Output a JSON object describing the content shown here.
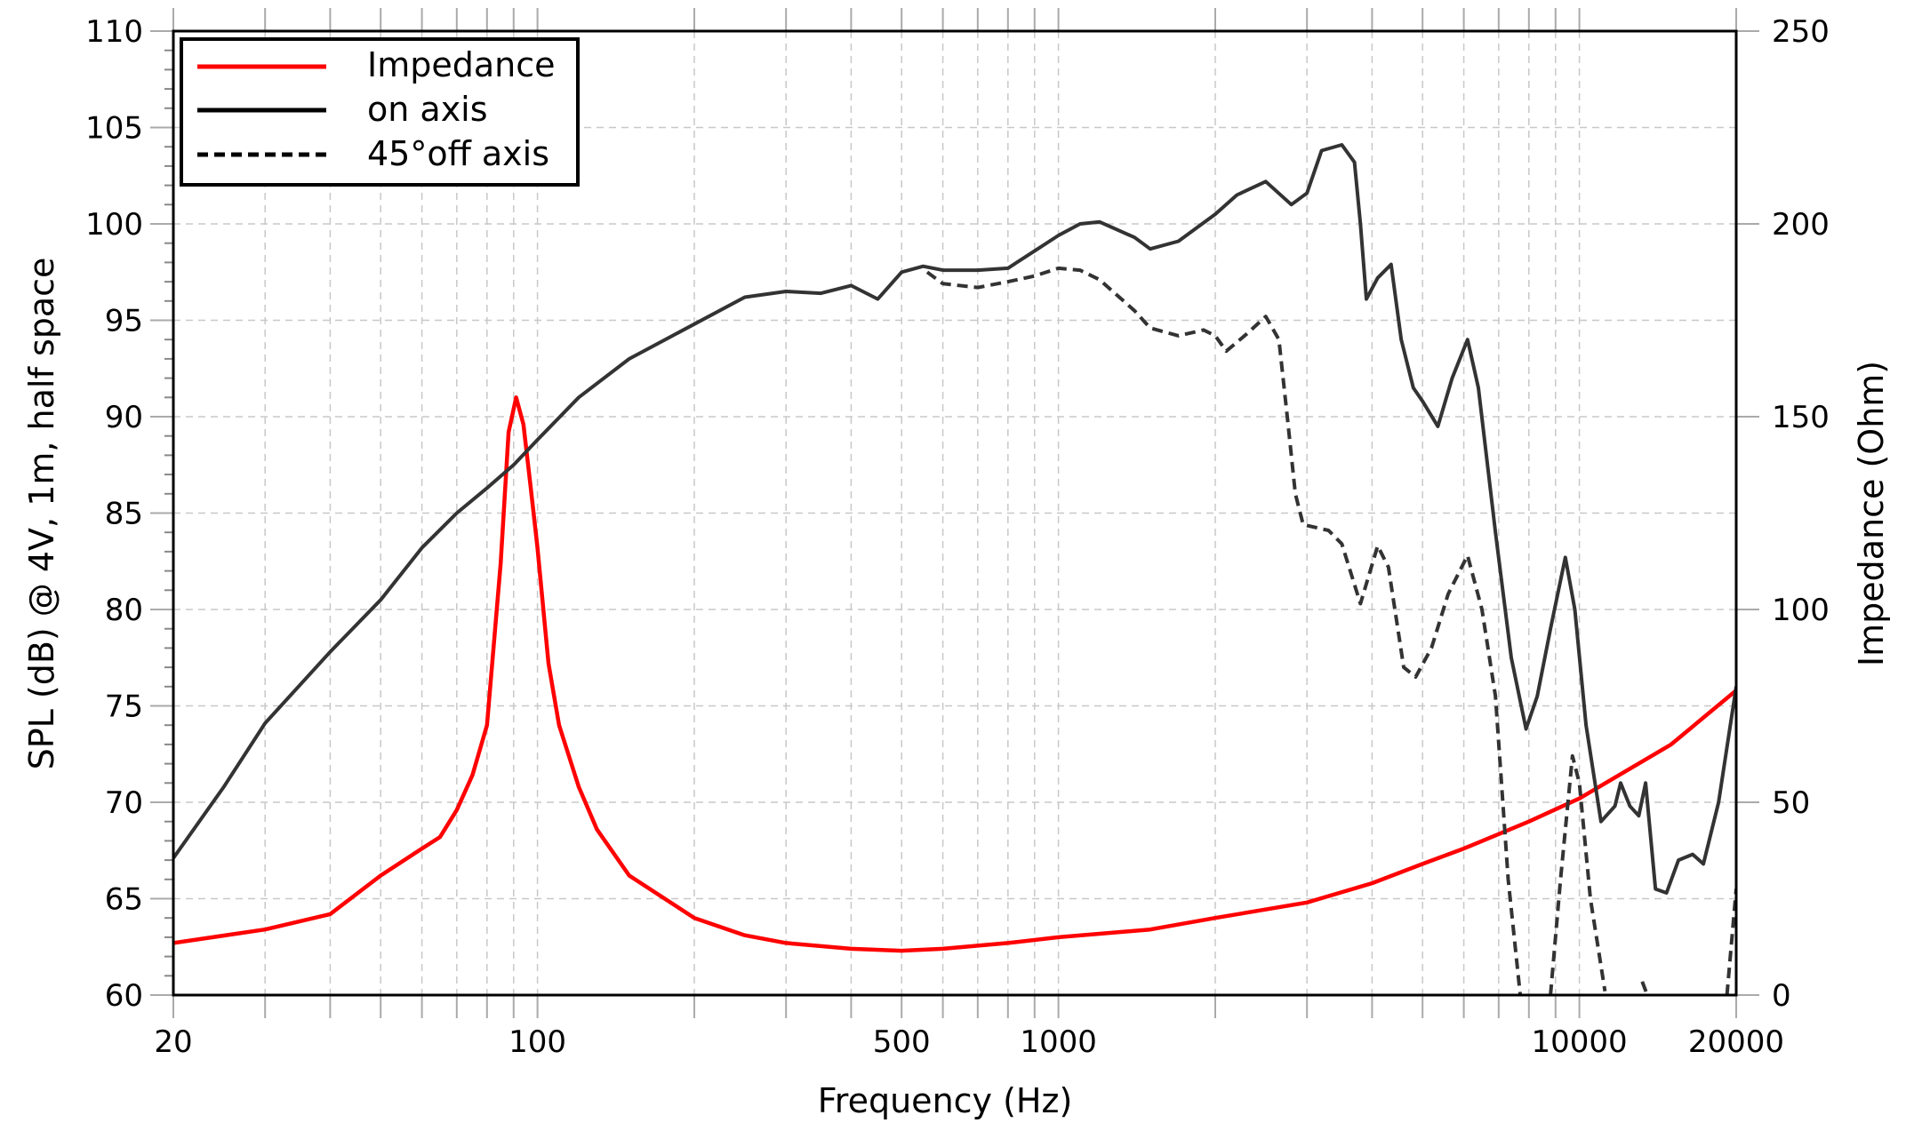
{
  "chart_data": {
    "type": "line",
    "xlabel": "Frequency (Hz)",
    "ylabel": "SPL (dB) @ 4V, 1m, half space",
    "y2label": "Impedance (Ohm)",
    "xscale": "log",
    "xlim": [
      20,
      20000
    ],
    "ylim": [
      60,
      110
    ],
    "y2lim": [
      0,
      250
    ],
    "grid": true,
    "legend_position": "top-left",
    "x_tick_labels": [
      "20",
      "100",
      "500",
      "1000",
      "10000",
      "20000"
    ],
    "x_tick_values": [
      20,
      100,
      500,
      1000,
      10000,
      20000
    ],
    "y_tick_labels": [
      "60",
      "65",
      "70",
      "75",
      "80",
      "85",
      "90",
      "95",
      "100",
      "105",
      "110"
    ],
    "y2_tick_labels": [
      "0",
      "50",
      "100",
      "150",
      "200",
      "250"
    ],
    "series": [
      {
        "name": "Impedance",
        "axis": "right",
        "color": "#ff0000",
        "style": "solid",
        "points": [
          [
            20,
            13.5
          ],
          [
            30,
            17
          ],
          [
            40,
            21
          ],
          [
            50,
            31
          ],
          [
            60,
            38
          ],
          [
            65,
            41
          ],
          [
            70,
            48
          ],
          [
            75,
            57
          ],
          [
            80,
            70
          ],
          [
            85,
            112
          ],
          [
            88,
            146
          ],
          [
            91,
            155
          ],
          [
            94,
            148
          ],
          [
            97,
            132
          ],
          [
            100,
            116
          ],
          [
            105,
            86
          ],
          [
            110,
            70
          ],
          [
            120,
            54
          ],
          [
            130,
            43
          ],
          [
            150,
            31
          ],
          [
            200,
            20
          ],
          [
            250,
            15.5
          ],
          [
            300,
            13.5
          ],
          [
            400,
            12
          ],
          [
            500,
            11.5
          ],
          [
            600,
            12
          ],
          [
            800,
            13.5
          ],
          [
            1000,
            15
          ],
          [
            1500,
            17
          ],
          [
            2000,
            20
          ],
          [
            3000,
            24
          ],
          [
            4000,
            29
          ],
          [
            5000,
            34
          ],
          [
            6000,
            38
          ],
          [
            8000,
            45
          ],
          [
            10000,
            51
          ],
          [
            15000,
            65
          ],
          [
            20000,
            79
          ]
        ]
      },
      {
        "name": "on axis",
        "axis": "left",
        "color": "#333333",
        "style": "solid",
        "points": [
          [
            20,
            67.1
          ],
          [
            25,
            70.8
          ],
          [
            30,
            74.1
          ],
          [
            40,
            77.8
          ],
          [
            50,
            80.5
          ],
          [
            60,
            83.2
          ],
          [
            70,
            85
          ],
          [
            80,
            86.3
          ],
          [
            90,
            87.5
          ],
          [
            100,
            88.8
          ],
          [
            120,
            91
          ],
          [
            150,
            93
          ],
          [
            200,
            94.8
          ],
          [
            250,
            96.2
          ],
          [
            300,
            96.5
          ],
          [
            350,
            96.4
          ],
          [
            400,
            96.8
          ],
          [
            450,
            96.1
          ],
          [
            500,
            97.5
          ],
          [
            550,
            97.8
          ],
          [
            600,
            97.6
          ],
          [
            700,
            97.6
          ],
          [
            800,
            97.7
          ],
          [
            900,
            98.6
          ],
          [
            1000,
            99.4
          ],
          [
            1100,
            100
          ],
          [
            1200,
            100.1
          ],
          [
            1400,
            99.3
          ],
          [
            1500,
            98.7
          ],
          [
            1700,
            99.1
          ],
          [
            2000,
            100.5
          ],
          [
            2200,
            101.5
          ],
          [
            2500,
            102.2
          ],
          [
            2800,
            101
          ],
          [
            3000,
            101.6
          ],
          [
            3200,
            103.8
          ],
          [
            3500,
            104.1
          ],
          [
            3700,
            103.2
          ],
          [
            3800,
            100
          ],
          [
            3900,
            96.1
          ],
          [
            4100,
            97.2
          ],
          [
            4350,
            97.9
          ],
          [
            4550,
            94
          ],
          [
            4800,
            91.5
          ],
          [
            5000,
            90.8
          ],
          [
            5350,
            89.5
          ],
          [
            5700,
            92
          ],
          [
            6100,
            94
          ],
          [
            6400,
            91.5
          ],
          [
            6900,
            84
          ],
          [
            7400,
            77.5
          ],
          [
            7900,
            73.8
          ],
          [
            8300,
            75.5
          ],
          [
            8800,
            79
          ],
          [
            9400,
            82.7
          ],
          [
            9800,
            80
          ],
          [
            10300,
            74
          ],
          [
            11000,
            69
          ],
          [
            11700,
            69.8
          ],
          [
            12000,
            71
          ],
          [
            12500,
            69.8
          ],
          [
            13000,
            69.3
          ],
          [
            13400,
            71
          ],
          [
            14000,
            65.5
          ],
          [
            14700,
            65.3
          ],
          [
            15500,
            67
          ],
          [
            16500,
            67.3
          ],
          [
            17300,
            66.8
          ],
          [
            18500,
            70
          ],
          [
            20000,
            76
          ]
        ]
      },
      {
        "name": "45°off axis",
        "axis": "left",
        "color": "#333333",
        "style": "dashed",
        "points": [
          [
            560,
            97.5
          ],
          [
            600,
            96.9
          ],
          [
            700,
            96.7
          ],
          [
            800,
            97
          ],
          [
            900,
            97.3
          ],
          [
            1000,
            97.7
          ],
          [
            1100,
            97.6
          ],
          [
            1200,
            97.1
          ],
          [
            1400,
            95.5
          ],
          [
            1500,
            94.6
          ],
          [
            1700,
            94.2
          ],
          [
            1900,
            94.5
          ],
          [
            2000,
            94.2
          ],
          [
            2100,
            93.4
          ],
          [
            2300,
            94.3
          ],
          [
            2500,
            95.2
          ],
          [
            2650,
            94
          ],
          [
            2750,
            90
          ],
          [
            2850,
            86
          ],
          [
            2950,
            84.4
          ],
          [
            3300,
            84.1
          ],
          [
            3500,
            83.4
          ],
          [
            3800,
            80.3
          ],
          [
            4100,
            83.3
          ],
          [
            4300,
            82.2
          ],
          [
            4600,
            77
          ],
          [
            4850,
            76.5
          ],
          [
            5200,
            78
          ],
          [
            5600,
            80.8
          ],
          [
            6100,
            82.8
          ],
          [
            6500,
            80
          ],
          [
            6900,
            75.5
          ],
          [
            7300,
            66
          ],
          [
            7700,
            60
          ],
          [
            7800,
            null
          ],
          [
            8700,
            null
          ],
          [
            8800,
            60
          ],
          [
            9200,
            66
          ],
          [
            9700,
            72.4
          ],
          [
            10000,
            71
          ],
          [
            10500,
            65
          ],
          [
            11200,
            60.2
          ],
          [
            11400,
            null
          ],
          [
            13000,
            null
          ],
          [
            13200,
            60.7
          ],
          [
            13500,
            60
          ],
          [
            13600,
            null
          ],
          [
            19000,
            null
          ],
          [
            19200,
            60
          ],
          [
            20000,
            65.5
          ]
        ]
      }
    ]
  }
}
